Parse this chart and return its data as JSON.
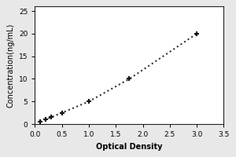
{
  "x_data": [
    0.1,
    0.2,
    0.3,
    0.5,
    1.0,
    1.75,
    3.0
  ],
  "y_data": [
    0.5,
    1.0,
    1.5,
    2.5,
    5.0,
    10.0,
    20.0
  ],
  "xlabel": "Optical Density",
  "ylabel": "Concentration(ng/mL)",
  "xlim": [
    0,
    3.5
  ],
  "ylim": [
    0,
    26
  ],
  "xticks": [
    0,
    0.5,
    1.0,
    1.5,
    2.0,
    2.5,
    3.0,
    3.5
  ],
  "yticks": [
    0,
    5,
    10,
    15,
    20,
    25
  ],
  "marker": "+",
  "marker_color": "#111111",
  "line_color": "#333333",
  "line_style": "dotted",
  "marker_size": 5,
  "marker_edge_width": 1.5,
  "line_width": 1.5,
  "bg_color": "#ffffff",
  "outer_bg": "#e8e8e8",
  "xlabel_fontsize": 7,
  "ylabel_fontsize": 7,
  "tick_fontsize": 6.5,
  "box_color": "#222222"
}
